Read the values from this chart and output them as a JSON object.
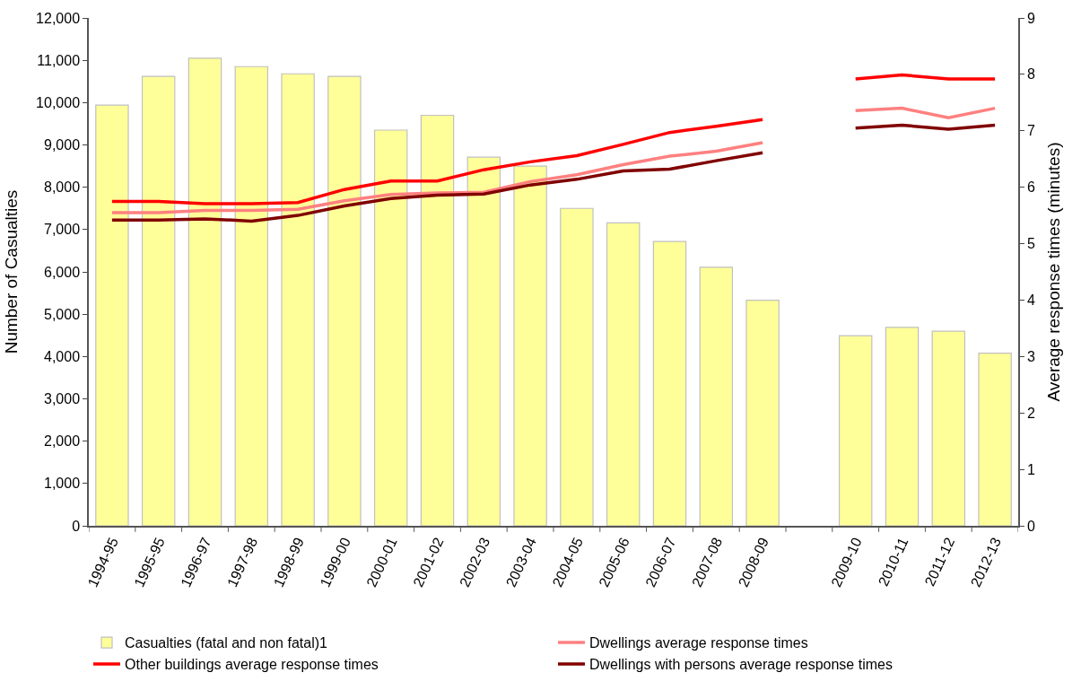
{
  "chart_data": {
    "type": "bar",
    "ylabel": "Number of Casualties",
    "y2label": "Average response times (minutes)",
    "categories": [
      "1994-95",
      "1995-95",
      "1996-97",
      "1997-98",
      "1998-99",
      "1999-00",
      "2000-01",
      "2001-02",
      "2002-03",
      "2003-04",
      "2004-05",
      "2005-06",
      "2006-07",
      "2007-08",
      "2008-09",
      null,
      "2009-10",
      "2010-11",
      "2011-12",
      "2012-13"
    ],
    "series": [
      {
        "name": "Casualties (fatal and non fatal)1",
        "color": "#ffff99",
        "values": [
          9940,
          10620,
          11050,
          10850,
          10680,
          10620,
          9350,
          9700,
          8710,
          8500,
          7500,
          7160,
          6720,
          6110,
          5330,
          null,
          4490,
          4690,
          4600,
          4080
        ]
      },
      {
        "name": "Dwellings average response times",
        "type": "line",
        "axis": "y2",
        "color": "#ff8080",
        "values": [
          5.55,
          5.55,
          5.59,
          5.59,
          5.61,
          5.76,
          5.87,
          5.9,
          5.91,
          6.1,
          6.22,
          6.4,
          6.55,
          6.64,
          6.79,
          null,
          7.36,
          7.4,
          7.23,
          7.4
        ]
      },
      {
        "name": "Other buildings average response times",
        "type": "line",
        "axis": "y2",
        "color": "#ff0000",
        "values": [
          5.75,
          5.75,
          5.71,
          5.71,
          5.73,
          5.96,
          6.11,
          6.11,
          6.31,
          6.45,
          6.56,
          6.76,
          6.97,
          7.08,
          7.2,
          null,
          7.92,
          7.99,
          7.92,
          7.92
        ]
      },
      {
        "name": "Dwellings with persons average response times",
        "type": "line",
        "axis": "y2",
        "color": "#800000",
        "values": [
          5.42,
          5.42,
          5.44,
          5.4,
          5.5,
          5.67,
          5.8,
          5.86,
          5.88,
          6.04,
          6.14,
          6.29,
          6.32,
          6.47,
          6.61,
          null,
          7.05,
          7.1,
          7.03,
          7.1
        ]
      }
    ],
    "ylim": [
      0,
      12000
    ],
    "yticks": [
      {
        "value": 0,
        "label": "0"
      },
      {
        "value": 1000,
        "label": "1,000"
      },
      {
        "value": 2000,
        "label": "2,000"
      },
      {
        "value": 3000,
        "label": "3,000"
      },
      {
        "value": 4000,
        "label": "4,000"
      },
      {
        "value": 5000,
        "label": "5,000"
      },
      {
        "value": 6000,
        "label": "6,000"
      },
      {
        "value": 7000,
        "label": "7,000"
      },
      {
        "value": 8000,
        "label": "8,000"
      },
      {
        "value": 9000,
        "label": "9,000"
      },
      {
        "value": 10000,
        "label": "10,000"
      },
      {
        "value": 11000,
        "label": "11,000"
      },
      {
        "value": 12000,
        "label": "12,000"
      }
    ],
    "y2lim": [
      0,
      9
    ],
    "y2ticks": [
      0,
      1,
      2,
      3,
      4,
      5,
      6,
      7,
      8,
      9
    ],
    "legend": "bottom",
    "marker": "none",
    "line_style": "solid"
  }
}
